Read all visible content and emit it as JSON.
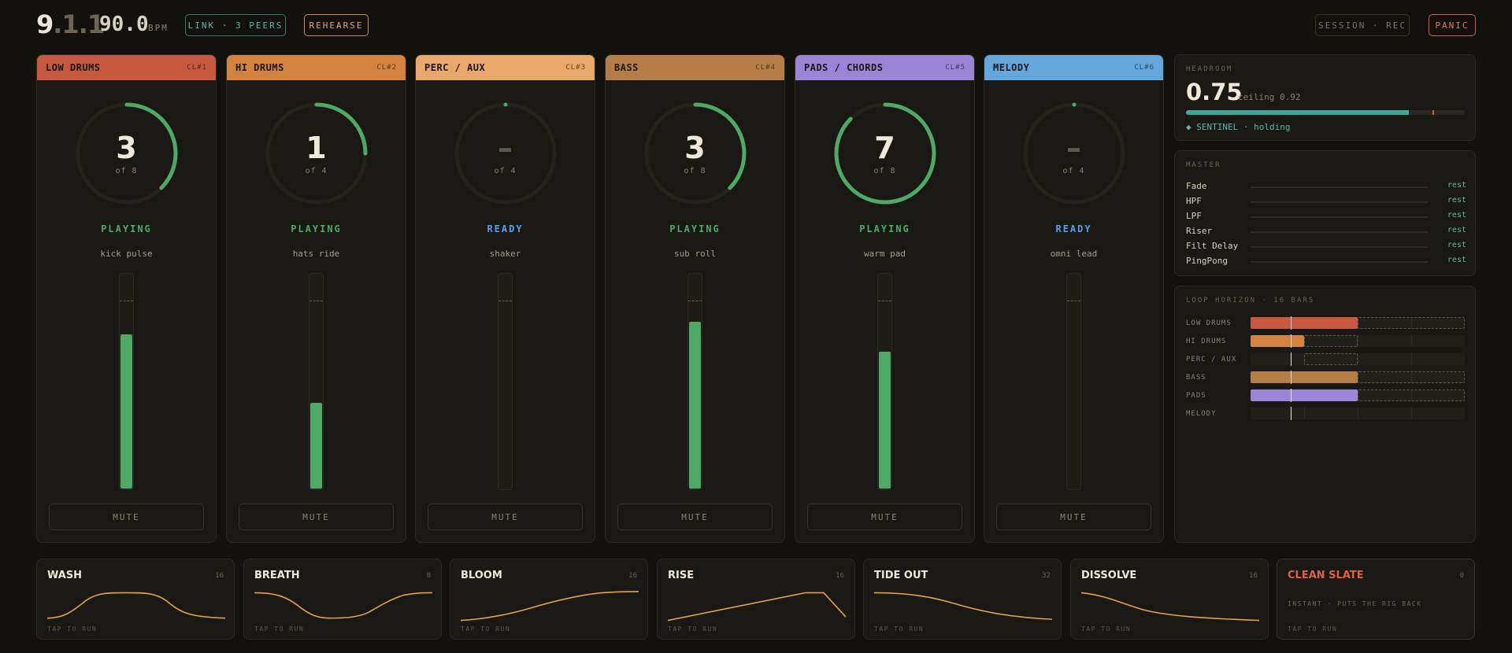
{
  "top": {
    "bar": "9",
    "beat": ".1",
    "sixteenth": ".1",
    "bpm": "90.0",
    "bpm_unit": "BPM",
    "link": "LINK · 3 PEERS",
    "rehearse": "REHEARSE",
    "session": "SESSION · REC",
    "panic": "PANIC"
  },
  "colors": {
    "playing": "#4ea866",
    "ready": "#5b9ee6",
    "low_drums": "#c6583f",
    "hi_drums": "#d4823f",
    "perc_aux": "#e8a86c",
    "bass": "#b57e48",
    "pads": "#9a84d6",
    "melody": "#63a7dd",
    "teal": "#3fa894"
  },
  "channels": [
    {
      "name": "LOW DRUMS",
      "id": "CL#1",
      "value": "3",
      "of": "of 8",
      "slots": 8,
      "active": 3,
      "status": "PLAYING",
      "clip": "kick pulse",
      "level": 0.72,
      "color": "#c6583f"
    },
    {
      "name": "HI DRUMS",
      "id": "CL#2",
      "value": "1",
      "of": "of 4",
      "slots": 4,
      "active": 1,
      "status": "PLAYING",
      "clip": "hats ride",
      "level": 0.4,
      "color": "#d4823f"
    },
    {
      "name": "PERC / AUX",
      "id": "CL#3",
      "value": "–",
      "of": "of 4",
      "slots": 4,
      "active": 0,
      "status": "READY",
      "clip": "shaker",
      "level": 0,
      "color": "#e8a86c"
    },
    {
      "name": "BASS",
      "id": "CL#4",
      "value": "3",
      "of": "of 8",
      "slots": 8,
      "active": 3,
      "status": "PLAYING",
      "clip": "sub roll",
      "level": 0.78,
      "color": "#b57e48"
    },
    {
      "name": "PADS / CHORDS",
      "id": "CL#5",
      "value": "7",
      "of": "of 8",
      "slots": 8,
      "active": 7,
      "status": "PLAYING",
      "clip": "warm pad",
      "level": 0.64,
      "color": "#9a84d6"
    },
    {
      "name": "MELODY",
      "id": "CL#6",
      "value": "–",
      "of": "of 4",
      "slots": 4,
      "active": 0,
      "status": "READY",
      "clip": "omni lead",
      "level": 0,
      "color": "#63a7dd"
    }
  ],
  "mute_label": "MUTE",
  "headroom": {
    "label": "HEADROOM",
    "value": "0.75",
    "ceiling": "ceiling 0.92",
    "fill": 0.8,
    "sentinel": "◆ SENTINEL · holding"
  },
  "master": {
    "label": "MASTER",
    "rows": [
      {
        "name": "Fade",
        "value": "rest"
      },
      {
        "name": "HPF",
        "value": "rest"
      },
      {
        "name": "LPF",
        "value": "rest"
      },
      {
        "name": "Riser",
        "value": "rest"
      },
      {
        "name": "Filt Delay",
        "value": "rest"
      },
      {
        "name": "PingPong",
        "value": "rest"
      }
    ]
  },
  "horizon": {
    "label": "LOOP HORIZON · 16 BARS",
    "total_bars": 16,
    "playhead_bar": 3,
    "rows": [
      {
        "name": "LOW DRUMS",
        "color": "#c6583f",
        "played": 8,
        "loop_start": 8,
        "loop_end": 16
      },
      {
        "name": "HI DRUMS",
        "color": "#d4823f",
        "played": 4,
        "loop_start": 4,
        "loop_end": 8
      },
      {
        "name": "PERC / AUX",
        "color": "#e8a86c",
        "played": 0,
        "loop_start": 4,
        "loop_end": 8
      },
      {
        "name": "BASS",
        "color": "#b57e48",
        "played": 8,
        "loop_start": 8,
        "loop_end": 16
      },
      {
        "name": "PADS",
        "color": "#9a84d6",
        "played": 8,
        "loop_start": 8,
        "loop_end": 16
      },
      {
        "name": "MELODY",
        "color": "#63a7dd",
        "played": 0,
        "loop_start": 0,
        "loop_end": 0
      }
    ]
  },
  "scenes": [
    {
      "name": "WASH",
      "bars": "16",
      "tap": "TAP TO RUN",
      "curve": "wash"
    },
    {
      "name": "BREATH",
      "bars": "8",
      "tap": "TAP TO RUN",
      "curve": "breath"
    },
    {
      "name": "BLOOM",
      "bars": "16",
      "tap": "TAP TO RUN",
      "curve": "bloom"
    },
    {
      "name": "RISE",
      "bars": "16",
      "tap": "TAP TO RUN",
      "curve": "rise"
    },
    {
      "name": "TIDE OUT",
      "bars": "32",
      "tap": "TAP TO RUN",
      "curve": "tide"
    },
    {
      "name": "DISSOLVE",
      "bars": "16",
      "tap": "TAP TO RUN",
      "curve": "dissolve"
    },
    {
      "name": "CLEAN SLATE",
      "bars": "0",
      "tap": "TAP TO RUN",
      "note": "INSTANT · PUTS THE RIG BACK",
      "curve": "none"
    }
  ]
}
